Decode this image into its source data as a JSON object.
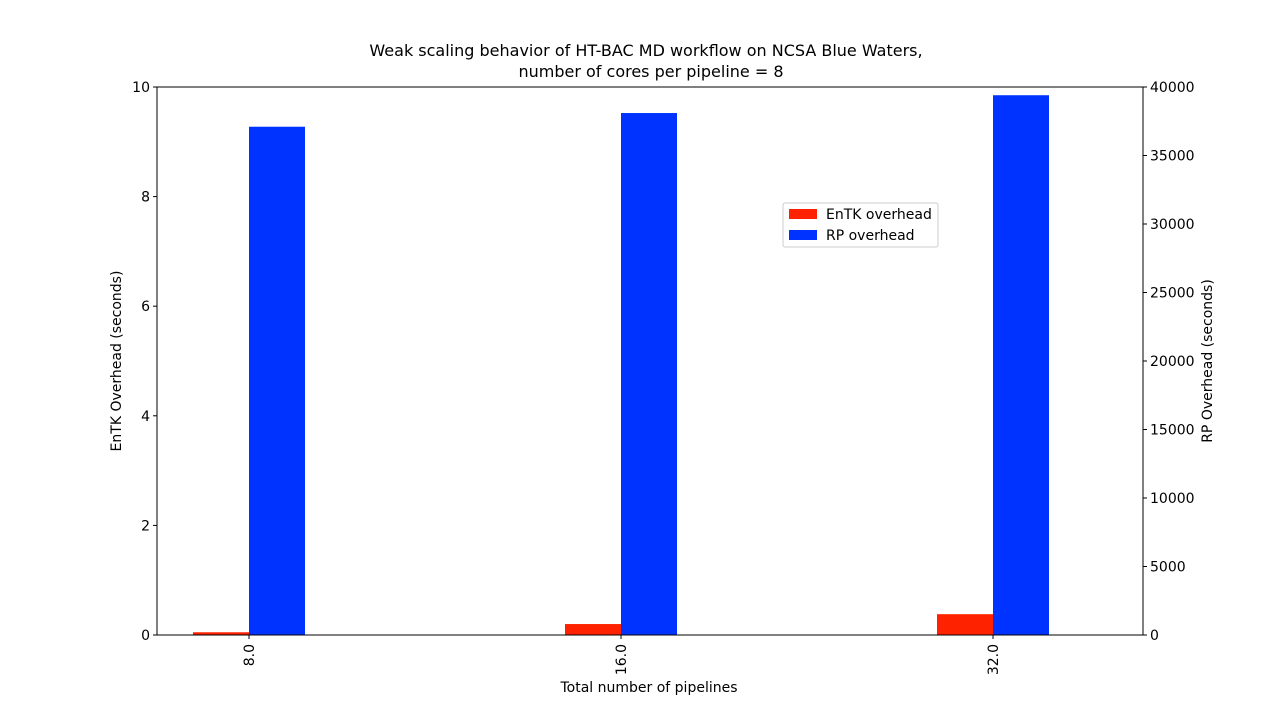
{
  "chart_data": {
    "type": "bar",
    "title_line1": "Weak scaling behavior of HT-BAC MD workflow on NCSA Blue Waters,",
    "title_line2": "number of cores per pipeline = 8",
    "xlabel": "Total number of pipelines",
    "ylabel_left": "EnTK Overhead (seconds)",
    "ylabel_right": "RP Overhead (seconds)",
    "categories": [
      "8.0",
      "16.0",
      "32.0"
    ],
    "ylim_left": [
      0,
      10
    ],
    "ylim_right": [
      0,
      40000
    ],
    "yticks_left": [
      "0",
      "2",
      "4",
      "6",
      "8",
      "10"
    ],
    "yticks_right": [
      "0",
      "5000",
      "10000",
      "15000",
      "20000",
      "25000",
      "30000",
      "35000",
      "40000"
    ],
    "grid": false,
    "legend_position": "upper-right-center",
    "series": [
      {
        "name": "EnTK overhead",
        "axis": "left",
        "color": "#ff2200",
        "values": [
          0.05,
          0.2,
          0.38
        ]
      },
      {
        "name": "RP overhead",
        "axis": "right",
        "color": "#0033ff",
        "values": [
          37100,
          38100,
          39400
        ]
      }
    ]
  }
}
